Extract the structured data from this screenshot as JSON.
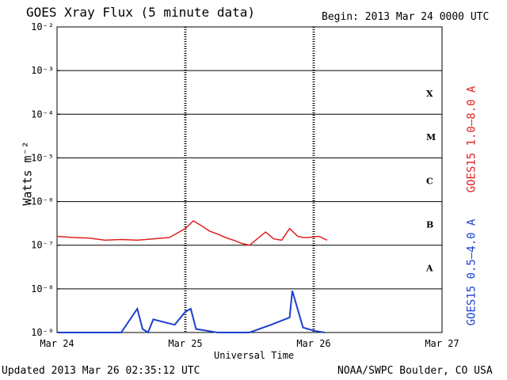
{
  "header": {
    "title": "GOES Xray Flux (5 minute data)",
    "begin_label": "Begin:  2013 Mar 24 0000 UTC"
  },
  "footer": {
    "updated": "Updated 2013 Mar 26 02:35:12 UTC",
    "credit": "NOAA/SWPC Boulder, CO USA"
  },
  "colors": {
    "long_channel": "#e02020",
    "short_channel": "#1a3fd0",
    "frame": "#000000"
  },
  "chart_data": {
    "type": "line",
    "title": "GOES Xray Flux (5 minute data)",
    "xlabel": "Universal Time",
    "ylabel": "Watts m⁻²",
    "y_scale": "log",
    "ylim": [
      1e-09,
      0.01
    ],
    "y_tick_values": [
      1e-09,
      1e-08,
      1e-07,
      1e-06,
      1e-05,
      0.0001,
      0.001,
      0.01
    ],
    "y_tick_labels": [
      "10⁻⁹",
      "10⁻⁸",
      "10⁻⁷",
      "10⁻⁶",
      "10⁻⁵",
      "10⁻⁴",
      "10⁻³",
      "10⁻²"
    ],
    "x_range": [
      "2013-03-24 00:00",
      "2013-03-27 00:00"
    ],
    "x_tick_labels": [
      "Mar 24",
      "Mar 25",
      "Mar 26",
      "Mar 27"
    ],
    "class_labels": [
      {
        "label": "X",
        "flux": 0.0003
      },
      {
        "label": "M",
        "flux": 3e-05
      },
      {
        "label": "C",
        "flux": 3e-06
      },
      {
        "label": "B",
        "flux": 3e-07
      },
      {
        "label": "A",
        "flux": 3e-08
      }
    ],
    "grid": "horizontal lines at each decade, dashed vertical at day boundaries",
    "series": [
      {
        "name": "GOES15 1.0–8.0 A",
        "color": "#e02020",
        "x": [
          "03-24 00:00",
          "03-24 03:00",
          "03-24 06:00",
          "03-24 09:00",
          "03-24 12:00",
          "03-24 15:00",
          "03-24 18:00",
          "03-24 21:00",
          "03-25 00:00",
          "03-25 01:30",
          "03-25 03:00",
          "03-25 04:30",
          "03-25 06:00",
          "03-25 07:30",
          "03-25 09:00",
          "03-25 10:30",
          "03-25 12:00",
          "03-25 15:00",
          "03-25 16:30",
          "03-25 18:00",
          "03-25 19:30",
          "03-25 21:00",
          "03-25 22:00",
          "03-25 23:00",
          "03-26 00:00",
          "03-26 01:00",
          "03-26 02:30"
        ],
        "y": [
          1.6e-07,
          1.5e-07,
          1.45e-07,
          1.3e-07,
          1.35e-07,
          1.3e-07,
          1.4e-07,
          1.5e-07,
          2.4e-07,
          3.6e-07,
          2.8e-07,
          2.1e-07,
          1.8e-07,
          1.5e-07,
          1.3e-07,
          1.1e-07,
          1e-07,
          2e-07,
          1.4e-07,
          1.3e-07,
          2.4e-07,
          1.6e-07,
          1.5e-07,
          1.5e-07,
          1.55e-07,
          1.6e-07,
          1.3e-07
        ]
      },
      {
        "name": "GOES15 0.5–4.0 A",
        "color": "#1a3fd0",
        "x": [
          "03-24 00:00",
          "03-24 06:00",
          "03-24 12:00",
          "03-24 15:00",
          "03-24 16:00",
          "03-24 17:00",
          "03-24 18:00",
          "03-24 22:00",
          "03-25 00:00",
          "03-25 01:00",
          "03-25 02:00",
          "03-25 06:00",
          "03-25 12:00",
          "03-25 16:00",
          "03-25 19:30",
          "03-25 20:00",
          "03-25 22:00",
          "03-26 00:00",
          "03-26 02:00"
        ],
        "y": [
          1e-09,
          1e-09,
          1e-09,
          3.5e-09,
          1.2e-09,
          1e-09,
          2e-09,
          1.5e-09,
          3e-09,
          3.5e-09,
          1.2e-09,
          1e-09,
          1e-09,
          1.5e-09,
          2.2e-09,
          9e-09,
          1.3e-09,
          1.1e-09,
          1e-09
        ]
      }
    ]
  }
}
